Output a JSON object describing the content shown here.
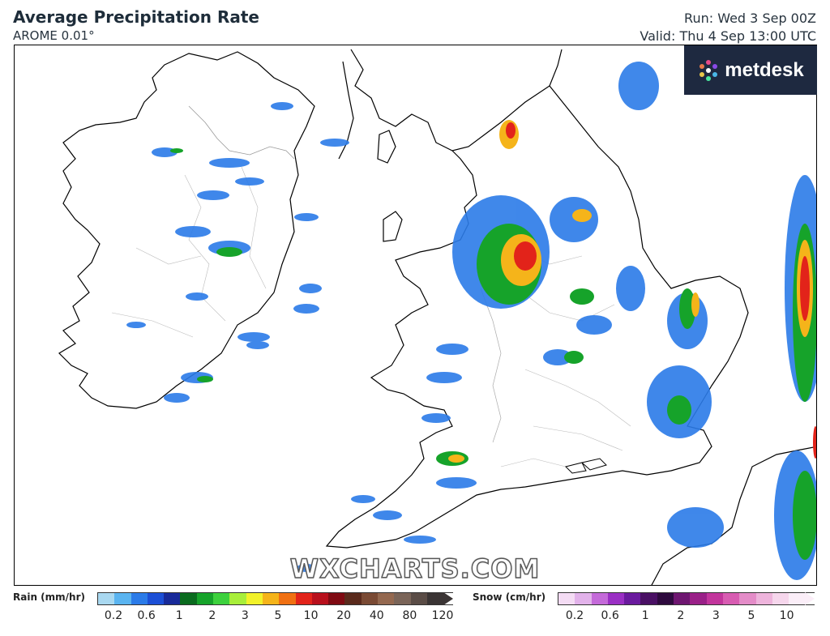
{
  "header": {
    "title": "Average Precipitation Rate",
    "model": "AROME 0.01°",
    "run": "Run: Wed 3 Sep 00Z",
    "valid": "Valid: Thu 4 Sep 13:00 UTC"
  },
  "logo": {
    "text": "metdesk",
    "icon": "metdesk-flower-icon"
  },
  "watermark": "WXCHARTS.COM",
  "legend": {
    "rain": {
      "label": "Rain (mm/hr)",
      "colors": [
        "#a9d8f0",
        "#5ab4f0",
        "#2b7be8",
        "#1c4fd6",
        "#182a99",
        "#0a6b1e",
        "#16a32a",
        "#3dd13d",
        "#a8ee3a",
        "#f2f22a",
        "#f5b41a",
        "#f07012",
        "#e2231a",
        "#b8101c",
        "#7f0a12",
        "#5a2a1c",
        "#7a4a34",
        "#94684f",
        "#7a6458",
        "#5a4c46",
        "#3a3434"
      ],
      "ticks": [
        "0.2",
        "0.6",
        "1",
        "2",
        "3",
        "5",
        "10",
        "20",
        "40",
        "80",
        "120"
      ]
    },
    "snow": {
      "label": "Snow (cm/hr)",
      "colors": [
        "#f4dcf4",
        "#e2b2ea",
        "#c46ad9",
        "#9a2fc4",
        "#6a1a9e",
        "#4a1064",
        "#2e0a3e",
        "#6e1670",
        "#9a2088",
        "#c2359c",
        "#d85cb2",
        "#e48cc8",
        "#eeb4dc",
        "#f6d6ec",
        "#fbeef8"
      ],
      "ticks": [
        "0.2",
        "0.6",
        "1",
        "2",
        "3",
        "5",
        "10"
      ]
    }
  }
}
